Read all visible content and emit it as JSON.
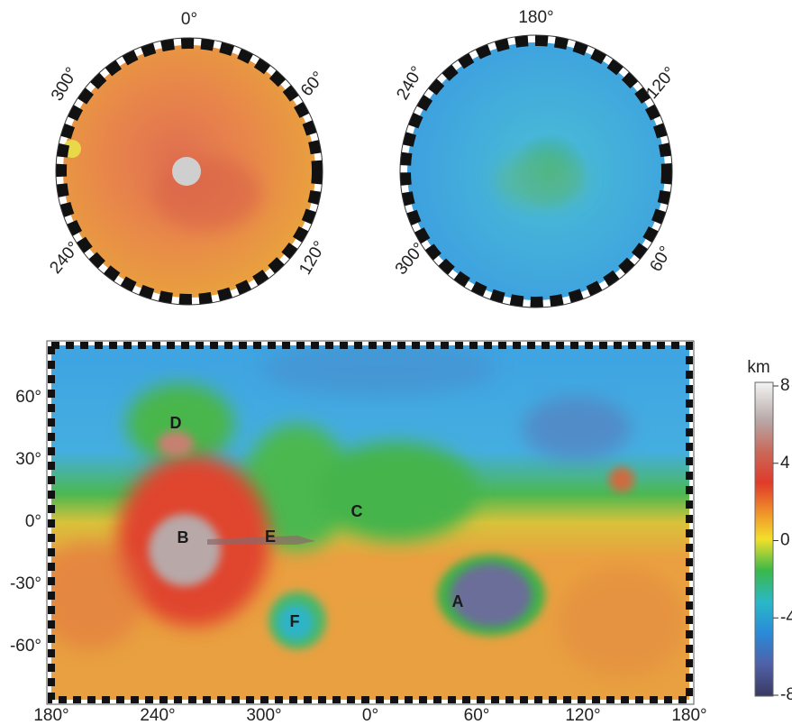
{
  "south_polar_map": {
    "labels": [
      "0°",
      "60°",
      "120°",
      "240°",
      "300°"
    ]
  },
  "north_polar_map": {
    "labels": [
      "180°",
      "120°",
      "60°",
      "300°",
      "240°"
    ]
  },
  "global_map": {
    "longitude_labels": [
      "180°",
      "240°",
      "300°",
      "0°",
      "60°",
      "120°",
      "180°"
    ],
    "latitude_labels": [
      "60°",
      "30°",
      "0°",
      "-30°",
      "-60°"
    ],
    "features": [
      "A",
      "B",
      "C",
      "D",
      "E",
      "F"
    ]
  },
  "colorbar": {
    "unit": "km",
    "lim": [
      -8,
      8
    ],
    "ticks": [
      8,
      4,
      0,
      -4,
      -8
    ]
  }
}
